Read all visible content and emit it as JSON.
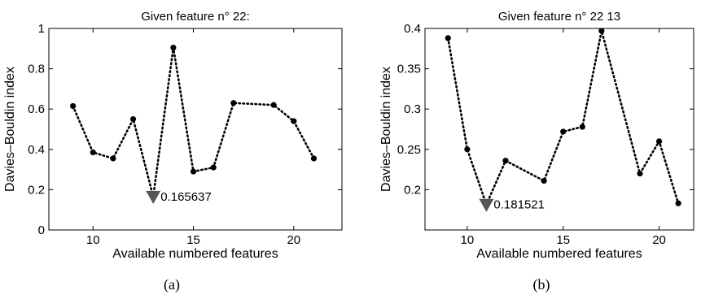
{
  "chart_data": [
    {
      "type": "line",
      "title": "Given feature n° 22:",
      "xlabel": "Available numbered features",
      "ylabel": "Davies–Bouldin index",
      "xlim": [
        7.8,
        22.4
      ],
      "ylim": [
        0,
        1
      ],
      "xticks": [
        10,
        15,
        20
      ],
      "yticks": [
        0,
        0.2,
        0.4,
        0.6,
        0.8,
        1
      ],
      "ytick_labels": [
        "0",
        "0.2",
        "0.4",
        "0.6",
        "0.8",
        "1"
      ],
      "x": [
        9,
        10,
        11,
        12,
        13,
        14,
        15,
        16,
        17,
        19,
        20,
        21
      ],
      "y": [
        0.615,
        0.385,
        0.355,
        0.55,
        0.165637,
        0.905,
        0.29,
        0.31,
        0.63,
        0.62,
        0.54,
        0.355
      ],
      "min_point": {
        "x": 13,
        "y": 0.165637,
        "label": "0.165637"
      },
      "grid": false,
      "caption": "(a)"
    },
    {
      "type": "line",
      "title": "Given feature n° 22  13",
      "xlabel": "Available numbered features",
      "ylabel": "Davies–Bouldin index",
      "xlim": [
        7.8,
        21.8
      ],
      "ylim": [
        0.15,
        0.4
      ],
      "xticks": [
        10,
        15,
        20
      ],
      "yticks": [
        0.2,
        0.25,
        0.3,
        0.35,
        0.4
      ],
      "ytick_labels": [
        "0.2",
        "0.25",
        "0.3",
        "0.35",
        "0.4"
      ],
      "x": [
        9,
        10,
        11,
        12,
        14,
        15,
        16,
        17,
        19,
        20,
        21
      ],
      "y": [
        0.388,
        0.25,
        0.181521,
        0.236,
        0.211,
        0.272,
        0.278,
        0.397,
        0.22,
        0.26,
        0.183
      ],
      "min_point": {
        "x": 11,
        "y": 0.181521,
        "label": "0.181521"
      },
      "grid": false,
      "caption": "(b)"
    }
  ]
}
